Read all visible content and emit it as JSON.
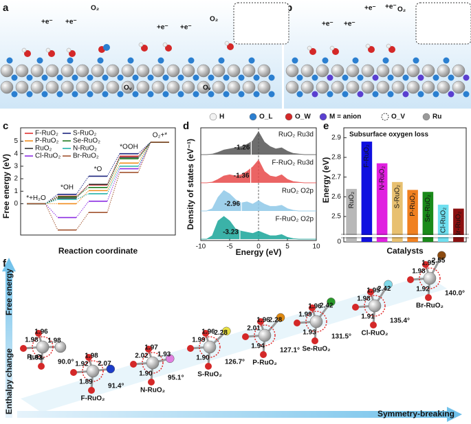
{
  "panel_labels": [
    "a",
    "b",
    "c",
    "d",
    "e",
    "f"
  ],
  "schematic": {
    "a_labels": [
      "+e⁻",
      "+e⁻",
      "O₂",
      "+e⁻",
      "+e⁻",
      "O₂",
      "Oᵥ",
      "Oᵥ"
    ],
    "b_labels": [
      "+e⁻",
      "+e⁻",
      "+e⁻",
      "+e⁻",
      "O₂"
    ],
    "legend": [
      {
        "label": "H",
        "color": "#f2f2f2"
      },
      {
        "label": "O_L",
        "color": "#2b7fd0"
      },
      {
        "label": "O_W",
        "color": "#d42828"
      },
      {
        "label": "M = anion",
        "color": "#5a3fd0"
      },
      {
        "label": "O_V",
        "color": "none"
      },
      {
        "label": "Ru",
        "color": "#9a9a9a"
      }
    ]
  },
  "chart_data": [
    {
      "type": "step",
      "xlabel": "Reaction coordinate",
      "ylabel": "Free energy (eV)",
      "categories": [
        "*+H₂O",
        "*OH",
        "*O",
        "*OOH",
        "O₂+*"
      ],
      "ylim": [
        -2.5,
        5.3
      ],
      "yticks": [
        0,
        1,
        2,
        3,
        4,
        5
      ],
      "series": [
        {
          "name": "F-RuO₂",
          "color": "#e03030",
          "values": [
            0,
            0.6,
            1.5,
            3.8,
            4.92
          ]
        },
        {
          "name": "P-RuO₂",
          "color": "#f08c1c",
          "values": [
            0,
            0.0,
            1.05,
            3.25,
            4.92
          ]
        },
        {
          "name": "RuO₂",
          "color": "#333333",
          "values": [
            0,
            0.45,
            1.55,
            3.7,
            4.92
          ]
        },
        {
          "name": "Cl-RuO₂",
          "color": "#8a2be2",
          "values": [
            0,
            -1.1,
            0.2,
            2.8,
            4.92
          ]
        },
        {
          "name": "S-RuO₂",
          "color": "#1a237e",
          "values": [
            0,
            0.75,
            2.2,
            4.0,
            4.92
          ]
        },
        {
          "name": "Se-RuO₂",
          "color": "#1e7a1e",
          "values": [
            0,
            0.55,
            1.3,
            3.6,
            4.92
          ]
        },
        {
          "name": "N-RuO₂",
          "color": "#20b2aa",
          "values": [
            0,
            0.35,
            0.8,
            3.0,
            4.92
          ]
        },
        {
          "name": "Br-RuO₂",
          "color": "#a0522d",
          "values": [
            0,
            -2.1,
            -0.7,
            2.5,
            4.92
          ]
        }
      ]
    },
    {
      "type": "area",
      "xlabel": "Energy (eV)",
      "ylabel": "Density of states (eV⁻¹)",
      "x": [
        -10,
        -9,
        -8,
        -7,
        -6,
        -5,
        -4,
        -3,
        -2,
        -1,
        0,
        1,
        2,
        3,
        4,
        5,
        6,
        7,
        8,
        9,
        10
      ],
      "xlim": [
        -10,
        10
      ],
      "xticks": [
        -10,
        -5,
        0,
        5,
        10
      ],
      "ylim": [
        0,
        1
      ],
      "series": [
        {
          "name": "RuO₂  Ru3d",
          "color": "#555555",
          "center": -1.26,
          "values": [
            0,
            0,
            0.02,
            0.1,
            0.2,
            0.25,
            0.3,
            0.35,
            0.45,
            0.6,
            1.0,
            0.55,
            0.35,
            0.25,
            0.3,
            0.15,
            0.05,
            0.02,
            0,
            0,
            0
          ]
        },
        {
          "name": "F-RuO₂  Ru3d",
          "color": "#e84a4a",
          "center": -1.36,
          "values": [
            0,
            0,
            0.03,
            0.15,
            0.3,
            0.35,
            0.3,
            0.35,
            0.5,
            0.7,
            1.0,
            0.5,
            0.3,
            0.25,
            0.35,
            0.15,
            0.05,
            0.02,
            0,
            0,
            0
          ]
        },
        {
          "name": "RuO₂  O2p",
          "color": "#8fc8e8",
          "center": -2.96,
          "values": [
            0,
            0,
            0.1,
            0.6,
            0.9,
            0.75,
            0.5,
            0.35,
            0.4,
            0.3,
            0.45,
            0.3,
            0.2,
            0.2,
            0.25,
            0.1,
            0.03,
            0,
            0,
            0,
            0
          ]
        },
        {
          "name": "F-RuO₂  O2p",
          "color": "#1aa59a",
          "center": -3.23,
          "values": [
            0,
            0,
            0.15,
            0.8,
            1.0,
            0.8,
            0.45,
            0.35,
            0.3,
            0.25,
            0.35,
            0.25,
            0.15,
            0.15,
            0.2,
            0.08,
            0.02,
            0,
            0,
            0,
            0
          ]
        }
      ]
    },
    {
      "type": "bar",
      "title": "Subsurface oxygen loss",
      "xlabel": "Catalysts",
      "ylabel": "Energy (eV)",
      "categories": [
        "RuO₂",
        "F-RuO₂",
        "N-RuO₂",
        "S-RuO₂",
        "P-RuO₂",
        "Se-RuO₂",
        "Cl-RuO₂",
        "Br-RuO₂"
      ],
      "values": [
        2.64,
        2.88,
        2.77,
        2.675,
        2.635,
        2.625,
        2.56,
        2.54
      ],
      "colors": [
        "#b8b8b8",
        "#1010e0",
        "#e020e0",
        "#e8c070",
        "#f08020",
        "#1a8a1a",
        "#70e0f0",
        "#8b1010"
      ],
      "ylim": [
        2.42,
        2.95
      ],
      "yticks": [
        2.5,
        2.6,
        2.7,
        2.8,
        2.9
      ],
      "break_tick": 0
    }
  ],
  "structures": {
    "axis_y_top": "Free energy",
    "axis_y_bottom": "Enthalpy change",
    "axis_x": "Symmetry-breaking",
    "items": [
      {
        "name": "RuO₂",
        "angle": "90.0°",
        "color": "#9a9a9a",
        "bonds": [
          "1.98",
          "1.96",
          "1.93",
          "1.98"
        ]
      },
      {
        "name": "F-RuO₂",
        "angle": "91.4°",
        "color": "#1c3cc8",
        "bonds": [
          "1.92",
          "1.98",
          "1.89",
          "2.07"
        ]
      },
      {
        "name": "N-RuO₂",
        "angle": "95.1°",
        "color": "#e080e0",
        "bonds": [
          "2.02",
          "1.97",
          "1.90",
          "1.93"
        ]
      },
      {
        "name": "S-RuO₂",
        "angle": "126.7°",
        "color": "#e8e040",
        "bonds": [
          "1.99",
          "1.96",
          "1.90",
          "2.28"
        ]
      },
      {
        "name": "P-RuO₂",
        "angle": "127.1°",
        "color": "#e08a10",
        "bonds": [
          "2.01",
          "1.96",
          "1.94",
          "2.28"
        ]
      },
      {
        "name": "Se-RuO₂",
        "angle": "131.5°",
        "color": "#2a9a2a",
        "bonds": [
          "1.99",
          "1.96",
          "1.93",
          "2.42"
        ]
      },
      {
        "name": "Cl-RuO₂",
        "angle": "135.4°",
        "color": "#80d8e8",
        "bonds": [
          "1.98",
          "1.95",
          "1.91",
          "2.42"
        ]
      },
      {
        "name": "Br-RuO₂",
        "angle": "140.0°",
        "color": "#8b4a10",
        "bonds": [
          "1.98",
          "1.95",
          "1.92",
          "2.55"
        ]
      }
    ]
  }
}
